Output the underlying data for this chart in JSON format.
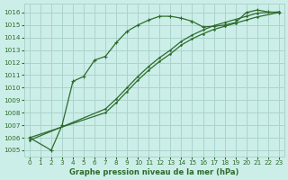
{
  "bg_color": "#cceee8",
  "grid_color": "#aad4cc",
  "line_color": "#2d6b2d",
  "xlabel": "Graphe pression niveau de la mer (hPa)",
  "xlim": [
    -0.5,
    23.5
  ],
  "ylim": [
    1004.5,
    1016.7
  ],
  "yticks": [
    1005,
    1006,
    1007,
    1008,
    1009,
    1010,
    1011,
    1012,
    1013,
    1014,
    1015,
    1016
  ],
  "xticks": [
    0,
    1,
    2,
    3,
    4,
    5,
    6,
    7,
    8,
    9,
    10,
    11,
    12,
    13,
    14,
    15,
    16,
    17,
    18,
    19,
    20,
    21,
    22,
    23
  ],
  "line1_x": [
    0,
    2,
    3,
    4,
    5,
    6,
    7,
    8,
    9,
    10,
    11,
    12,
    13,
    14,
    15,
    16,
    17,
    18,
    19,
    20,
    21,
    22,
    23
  ],
  "line1_y": [
    1006.0,
    1005.0,
    1007.0,
    1010.5,
    1010.9,
    1012.2,
    1012.5,
    1013.6,
    1014.5,
    1015.0,
    1015.4,
    1015.7,
    1015.7,
    1015.55,
    1015.3,
    1014.85,
    1014.9,
    1015.0,
    1015.2,
    1016.0,
    1016.2,
    1016.05,
    1016.0
  ],
  "line2_x": [
    0,
    7,
    8,
    9,
    10,
    11,
    12,
    13,
    14,
    15,
    16,
    17,
    18,
    19,
    20,
    21,
    23
  ],
  "line2_y": [
    1006.0,
    1008.0,
    1008.8,
    1009.7,
    1010.6,
    1011.4,
    1012.1,
    1012.7,
    1013.4,
    1013.9,
    1014.3,
    1014.65,
    1014.9,
    1015.15,
    1015.4,
    1015.65,
    1016.0
  ],
  "line3_x": [
    0,
    7,
    8,
    9,
    10,
    11,
    12,
    13,
    14,
    15,
    16,
    17,
    18,
    19,
    20,
    21,
    23
  ],
  "line3_y": [
    1005.8,
    1008.3,
    1009.1,
    1010.0,
    1010.9,
    1011.7,
    1012.4,
    1013.0,
    1013.7,
    1014.2,
    1014.6,
    1014.95,
    1015.2,
    1015.45,
    1015.7,
    1015.95,
    1016.05
  ]
}
